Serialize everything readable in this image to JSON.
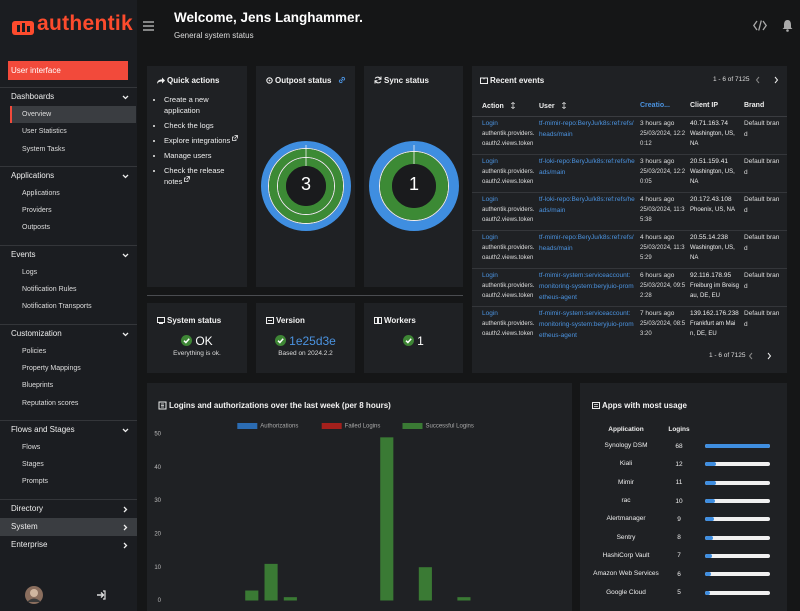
{
  "logo": "authentik",
  "header": {
    "title": "Welcome, Jens Langhammer.",
    "subtitle": "General system status"
  },
  "sidebar": {
    "current": "User interface",
    "sections": [
      {
        "title": "Dashboards",
        "items": [
          "Overview",
          "User Statistics",
          "System Tasks"
        ]
      },
      {
        "title": "Applications",
        "items": [
          "Applications",
          "Providers",
          "Outposts"
        ]
      },
      {
        "title": "Events",
        "items": [
          "Logs",
          "Notification Rules",
          "Notification Transports"
        ]
      },
      {
        "title": "Customization",
        "items": [
          "Policies",
          "Property Mappings",
          "Blueprints",
          "Reputation scores"
        ]
      },
      {
        "title": "Flows and Stages",
        "items": [
          "Flows",
          "Stages",
          "Prompts"
        ]
      },
      {
        "title": "Directory"
      },
      {
        "title": "System"
      },
      {
        "title": "Enterprise"
      }
    ]
  },
  "quick_actions": {
    "title": "Quick actions",
    "items": [
      {
        "label": "Create a new application",
        "external": false
      },
      {
        "label": "Check the logs",
        "external": false
      },
      {
        "label": "Explore integrations",
        "external": true
      },
      {
        "label": "Manage users",
        "external": false
      },
      {
        "label": "Check the release notes",
        "external": true
      }
    ]
  },
  "outpost_status": {
    "title": "Outpost status",
    "value": 3
  },
  "sync_status": {
    "title": "Sync status",
    "value": 1
  },
  "recent_events": {
    "title": "Recent events",
    "pagination": "1 - 6 of 7125",
    "columns": [
      "Action",
      "User",
      "Creatio...",
      "Client IP",
      "Brand"
    ],
    "rows": [
      {
        "action": "Login",
        "context": "authentik.providers.oauth2.views.token",
        "user": "tf-mimir-repo:BeryJu/k8s:ref:refs/heads/main",
        "created": "3 hours ago",
        "timestamp": "25/03/2024, 12:20:12",
        "ip": "40.71.163.74",
        "location": "Washington, US, NA",
        "brand": "Default brand"
      },
      {
        "action": "Login",
        "context": "authentik.providers.oauth2.views.token",
        "user": "tf-loki-repo:BeryJu/k8s:ref:refs/heads/main",
        "created": "3 hours ago",
        "timestamp": "25/03/2024, 12:20:05",
        "ip": "20.51.159.41",
        "location": "Washington, US, NA",
        "brand": "Default brand"
      },
      {
        "action": "Login",
        "context": "authentik.providers.oauth2.views.token",
        "user": "tf-loki-repo:BeryJu/k8s:ref:refs/heads/main",
        "created": "4 hours ago",
        "timestamp": "25/03/2024, 11:35:38",
        "ip": "20.172.43.108",
        "location": "Phoenix, US, NA",
        "brand": "Default brand"
      },
      {
        "action": "Login",
        "context": "authentik.providers.oauth2.views.token",
        "user": "tf-mimir-repo:BeryJu/k8s:ref:refs/heads/main",
        "created": "4 hours ago",
        "timestamp": "25/03/2024, 11:35:29",
        "ip": "20.55.14.238",
        "location": "Washington, US, NA",
        "brand": "Default brand"
      },
      {
        "action": "Login",
        "context": "authentik.providers.oauth2.views.token",
        "user": "tf-mimir-system:serviceaccount:monitoring-system:beryjuio-prometheus-agent",
        "created": "6 hours ago",
        "timestamp": "25/03/2024, 09:52:28",
        "ip": "92.116.178.95",
        "location": "Freiburg im Breisgau, DE, EU",
        "brand": "Default brand"
      },
      {
        "action": "Login",
        "context": "authentik.providers.oauth2.views.token",
        "user": "tf-mimir-system:serviceaccount:monitoring-system:beryjuio-prometheus-agent",
        "created": "7 hours ago",
        "timestamp": "25/03/2024, 08:53:20",
        "ip": "139.162.176.238",
        "location": "Frankfurt am Main, DE, EU",
        "brand": "Default brand"
      }
    ]
  },
  "system_status": {
    "title": "System status",
    "value": "OK",
    "detail": "Everything is ok."
  },
  "version": {
    "title": "Version",
    "value": "1e25d3e",
    "detail": "Based on 2024.2.2"
  },
  "workers": {
    "title": "Workers",
    "value": 1
  },
  "chart_data": {
    "type": "bar",
    "stacked": true,
    "legend": "top",
    "grid": false,
    "title": "Logins and authorizations over the last week (per 8 hours)",
    "categories": [
      null,
      null,
      null,
      null,
      null,
      null,
      null,
      null,
      null,
      null,
      null,
      null,
      null,
      null,
      null,
      null,
      null,
      null,
      null,
      null,
      null
    ],
    "series": [
      {
        "name": "Authorizations",
        "color": "#2b6cb3",
        "values": [
          0,
          0,
          0,
          0,
          0,
          0,
          0,
          0,
          0,
          0,
          0,
          0,
          0,
          0,
          0,
          0,
          0,
          0,
          0,
          0,
          0
        ]
      },
      {
        "name": "Failed Logins",
        "color": "#a3201c",
        "values": [
          0,
          0,
          0,
          0,
          0,
          0,
          0,
          0,
          0,
          0,
          0,
          0,
          0,
          0,
          0,
          0,
          0,
          0,
          0,
          0,
          0
        ]
      },
      {
        "name": "Successful Logins",
        "color": "#3a7a34",
        "values": [
          0,
          0,
          0,
          0,
          3,
          11,
          1,
          0,
          0,
          0,
          0,
          49,
          0,
          10,
          0,
          1,
          0,
          0,
          0,
          0,
          0
        ]
      }
    ],
    "ylim": [
      0,
      50
    ],
    "yticks": [
      0,
      10,
      20,
      30,
      40,
      50
    ]
  },
  "apps": {
    "title": "Apps with most usage",
    "columns": [
      "Application",
      "Logins"
    ],
    "rows": [
      {
        "name": "Synology DSM",
        "logins": 68
      },
      {
        "name": "Kiali",
        "logins": 12
      },
      {
        "name": "Mimir",
        "logins": 11
      },
      {
        "name": "rac",
        "logins": 10
      },
      {
        "name": "Alertmanager",
        "logins": 9
      },
      {
        "name": "Sentry",
        "logins": 8
      },
      {
        "name": "HashiCorp Vault",
        "logins": 7
      },
      {
        "name": "Amazon Web Services",
        "logins": 6
      },
      {
        "name": "Google Cloud",
        "logins": 5
      }
    ]
  }
}
